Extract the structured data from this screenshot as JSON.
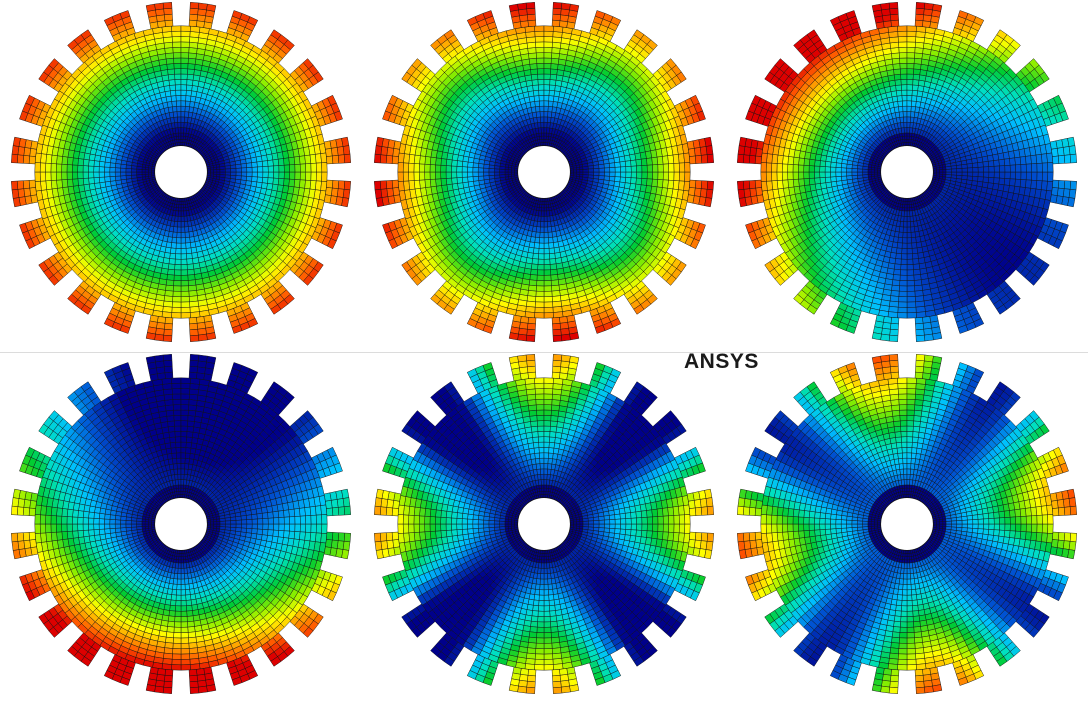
{
  "brand_label": "ANSYS",
  "mesh": {
    "hole_radius": 0.155,
    "inner_ring_outer_radius": 0.23,
    "disk_radius": 0.86,
    "tooth_radius": 1.0,
    "tooth_count": 24,
    "tooth_width_fraction": 0.58,
    "radial_divisions_ring": 4,
    "radial_divisions_disk": 20,
    "radial_divisions_tooth": 4,
    "angular_divisions": 96
  },
  "palette": [
    "#00008b",
    "#0055d4",
    "#00bfff",
    "#00e0c0",
    "#00cc33",
    "#88ee00",
    "#ffff00",
    "#ffaa00",
    "#ff5500",
    "#dd0000"
  ],
  "panels": [
    {
      "id": "mode-1",
      "base": 0.0,
      "radial": 0.95,
      "amp": 0.0,
      "n": 0,
      "phase": 0,
      "mix": 1.0,
      "tooth_boost": 0.0
    },
    {
      "id": "mode-2",
      "base": 0.0,
      "radial": 0.92,
      "amp": 0.06,
      "n": 4,
      "phase": 0.3,
      "mix": 1.0,
      "tooth_boost": 0.0
    },
    {
      "id": "mode-3",
      "base": 0.05,
      "radial": 0.55,
      "amp": 0.35,
      "n": 1,
      "phase": 2.4,
      "mix": 1.3,
      "tooth_boost": 0.05
    },
    {
      "id": "mode-4",
      "base": 0.05,
      "radial": 0.5,
      "amp": 0.42,
      "n": 1,
      "phase": 4.5,
      "mix": 1.3,
      "tooth_boost": 0.05
    },
    {
      "id": "mode-5",
      "base": 0.05,
      "radial": 0.32,
      "amp": 0.32,
      "n": 4,
      "phase": 0.0,
      "mix": 1.4,
      "tooth_boost": 0.0
    },
    {
      "id": "mode-6",
      "base": 0.12,
      "radial": 0.35,
      "amp": 0.3,
      "n": 4,
      "phase": 0.78,
      "mix": 1.4,
      "tooth_boost": 0.0
    }
  ]
}
